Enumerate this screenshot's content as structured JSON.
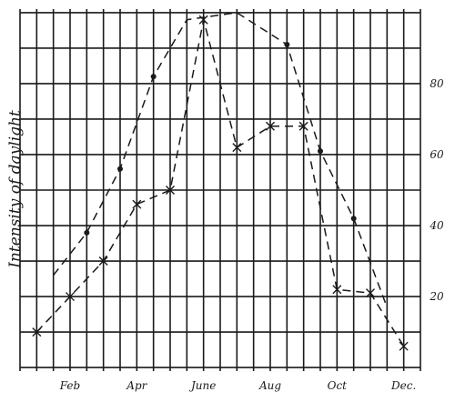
{
  "chart_data": {
    "type": "line",
    "title": "",
    "ylabel": "Intensity of daylight",
    "xlabel": "",
    "x_tick_labels": [
      {
        "month": 2,
        "label": "Feb"
      },
      {
        "month": 4,
        "label": "Apr"
      },
      {
        "month": 6,
        "label": "June"
      },
      {
        "month": 8,
        "label": "Aug"
      },
      {
        "month": 10,
        "label": "Oct"
      },
      {
        "month": 12,
        "label": "Dec."
      }
    ],
    "y_tick_labels": [
      {
        "value": 20,
        "label": "20"
      },
      {
        "value": 40,
        "label": "40"
      },
      {
        "value": 60,
        "label": "60"
      },
      {
        "value": 80,
        "label": "80"
      }
    ],
    "xlim": [
      0.5,
      12.5
    ],
    "ylim": [
      -1,
      101
    ],
    "grid": true,
    "series": [
      {
        "marker": "dot",
        "x": [
          1.5,
          2.5,
          3.5,
          4.5,
          5.5,
          7.0,
          8.5,
          9.5,
          10.5,
          11.5
        ],
        "y": [
          26,
          38,
          56,
          82,
          98,
          100,
          91,
          61,
          42,
          17
        ],
        "points": [
          {
            "x": 2.5,
            "y": 38
          },
          {
            "x": 3.5,
            "y": 56
          },
          {
            "x": 4.5,
            "y": 82
          },
          {
            "x": 8.5,
            "y": 91
          },
          {
            "x": 9.5,
            "y": 61
          },
          {
            "x": 10.5,
            "y": 42
          }
        ]
      },
      {
        "marker": "cross",
        "x": [
          1.0,
          2.0,
          3.0,
          4.0,
          5.0,
          6.0,
          7.0,
          8.0,
          9.0,
          10.0,
          11.0,
          12.0
        ],
        "y": [
          10,
          20,
          30,
          46,
          50,
          98,
          62,
          68,
          68,
          22,
          21,
          6
        ]
      }
    ]
  }
}
